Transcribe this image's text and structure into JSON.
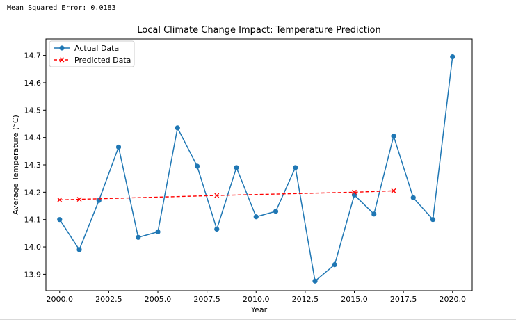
{
  "output": {
    "mse_text": "Mean Squared Error: 0.0183"
  },
  "chart_data": {
    "type": "line",
    "title": "Local Climate Change Impact: Temperature Prediction",
    "xlabel": "Year",
    "ylabel": "Average Temperature (°C)",
    "xlim": [
      1999.3,
      2021.0
    ],
    "ylim": [
      13.84,
      14.76
    ],
    "xticks": [
      2000.0,
      2002.5,
      2005.0,
      2007.5,
      2010.0,
      2012.5,
      2015.0,
      2017.5,
      2020.0
    ],
    "xtick_labels": [
      "2000.0",
      "2002.5",
      "2005.0",
      "2007.5",
      "2010.0",
      "2012.5",
      "2015.0",
      "2017.5",
      "2020.0"
    ],
    "yticks": [
      13.9,
      14.0,
      14.1,
      14.2,
      14.3,
      14.4,
      14.5,
      14.6,
      14.7
    ],
    "ytick_labels": [
      "13.9",
      "14.0",
      "14.1",
      "14.2",
      "14.3",
      "14.4",
      "14.5",
      "14.6",
      "14.7"
    ],
    "grid": false,
    "legend_position": "top-left",
    "series": [
      {
        "name": "Actual Data",
        "color": "#1f77b4",
        "style": "solid",
        "marker": "circle",
        "x": [
          2000,
          2001,
          2002,
          2003,
          2004,
          2005,
          2006,
          2007,
          2008,
          2009,
          2010,
          2011,
          2012,
          2013,
          2014,
          2015,
          2016,
          2017,
          2018,
          2019,
          2020
        ],
        "y": [
          14.1,
          13.99,
          14.17,
          14.365,
          14.035,
          14.055,
          14.435,
          14.295,
          14.065,
          14.29,
          14.11,
          14.13,
          14.29,
          13.875,
          13.935,
          14.19,
          14.12,
          14.405,
          14.18,
          14.1,
          14.695
        ]
      },
      {
        "name": "Predicted Data",
        "color": "#ff0000",
        "style": "dashed",
        "marker": "x",
        "x": [
          2000,
          2001,
          2008,
          2015,
          2017
        ],
        "y": [
          14.172,
          14.174,
          14.188,
          14.2,
          14.205
        ]
      }
    ]
  }
}
